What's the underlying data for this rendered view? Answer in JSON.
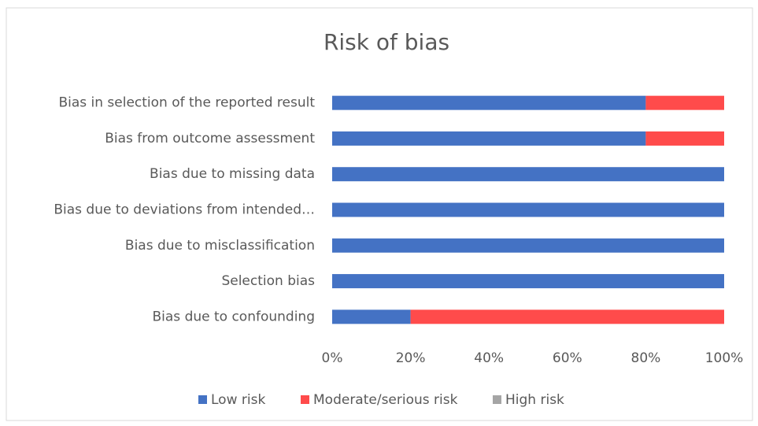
{
  "chart_data": {
    "type": "stacked_barh",
    "title": "Risk of bias",
    "categories": [
      "Bias in selection of the reported result",
      "Bias from outcome assessment",
      "Bias due to missing data",
      "Bias due to deviations from intended…",
      "Bias due to misclassification",
      "Selection bias",
      "Bias due to confounding"
    ],
    "series": [
      {
        "name": "Low risk",
        "color": "#4472c4",
        "values": [
          80,
          80,
          100,
          100,
          100,
          100,
          20
        ]
      },
      {
        "name": "Moderate/serious risk",
        "color": "#ff4b4b",
        "values": [
          20,
          20,
          0,
          0,
          0,
          0,
          80
        ]
      },
      {
        "name": "High risk",
        "color": "#a5a5a5",
        "values": [
          0,
          0,
          0,
          0,
          0,
          0,
          0
        ]
      }
    ],
    "xlim": [
      0,
      100
    ],
    "xticks": [
      {
        "value": 0,
        "label": "0%"
      },
      {
        "value": 20,
        "label": "20%"
      },
      {
        "value": 40,
        "label": "40%"
      },
      {
        "value": 60,
        "label": "60%"
      },
      {
        "value": 80,
        "label": "80%"
      },
      {
        "value": 100,
        "label": "100%"
      }
    ],
    "grid": false,
    "legend": "bottom"
  }
}
